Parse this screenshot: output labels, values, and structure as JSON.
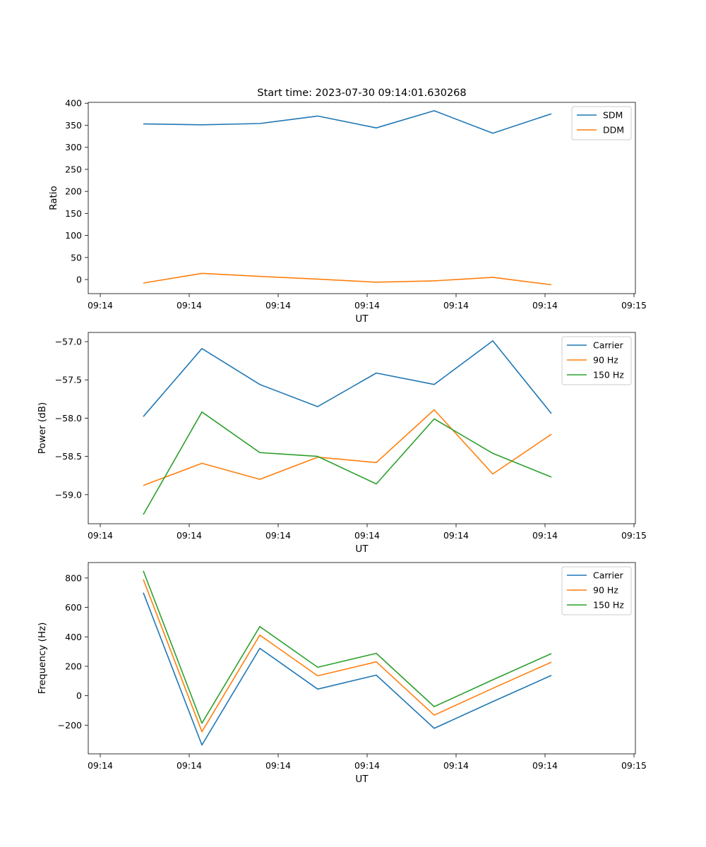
{
  "figure_title": "Start time: 2023-07-30 09:14:01.630268",
  "colors": {
    "blue": "#1f77b4",
    "orange": "#ff7f0e",
    "green": "#2ca02c"
  },
  "chart_data": [
    {
      "type": "line",
      "title": "Start time: 2023-07-30 09:14:01.630268",
      "xlabel": "UT",
      "ylabel": "Ratio",
      "xticks": [
        "09:14",
        "09:14",
        "09:14",
        "09:14",
        "09:14",
        "09:14",
        "09:15"
      ],
      "yticks": [
        0,
        50,
        100,
        150,
        200,
        250,
        300,
        350,
        400
      ],
      "ylim": [
        -32,
        402
      ],
      "legend": "top-right",
      "series": [
        {
          "name": "SDM",
          "color": "#1f77b4",
          "values": [
            353,
            351,
            354,
            371,
            344,
            383,
            332,
            376
          ]
        },
        {
          "name": "DDM",
          "color": "#ff7f0e",
          "values": [
            -8,
            14,
            7,
            1,
            -6,
            -3,
            5,
            -12
          ]
        }
      ]
    },
    {
      "type": "line",
      "xlabel": "UT",
      "ylabel": "Power (dB)",
      "xticks": [
        "09:14",
        "09:14",
        "09:14",
        "09:14",
        "09:14",
        "09:14",
        "09:15"
      ],
      "yticks": [
        -59.0,
        -58.5,
        -58.0,
        -57.5,
        -57.0
      ],
      "ylim": [
        -59.38,
        -56.88
      ],
      "legend": "top-right",
      "series": [
        {
          "name": "Carrier",
          "color": "#1f77b4",
          "values": [
            -57.98,
            -57.09,
            -57.56,
            -57.85,
            -57.41,
            -57.56,
            -56.99,
            -57.94
          ]
        },
        {
          "name": "90 Hz",
          "color": "#ff7f0e",
          "values": [
            -58.88,
            -58.59,
            -58.8,
            -58.51,
            -58.58,
            -57.89,
            -58.73,
            -58.21
          ]
        },
        {
          "name": "150 Hz",
          "color": "#2ca02c",
          "values": [
            -59.26,
            -57.92,
            -58.45,
            -58.5,
            -58.86,
            -58.01,
            -58.46,
            -58.77
          ]
        }
      ]
    },
    {
      "type": "line",
      "xlabel": "UT",
      "ylabel": "Frequency (Hz)",
      "xticks": [
        "09:14",
        "09:14",
        "09:14",
        "09:14",
        "09:14",
        "09:14",
        "09:15"
      ],
      "yticks": [
        -200,
        0,
        200,
        400,
        600,
        800
      ],
      "ylim": [
        -395,
        905
      ],
      "legend": "top-right",
      "series": [
        {
          "name": "Carrier",
          "color": "#1f77b4",
          "values": [
            700,
            -335,
            322,
            45,
            140,
            -222,
            -40,
            138
          ]
        },
        {
          "name": "90 Hz",
          "color": "#ff7f0e",
          "values": [
            790,
            -245,
            412,
            135,
            230,
            -132,
            50,
            228
          ]
        },
        {
          "name": "150 Hz",
          "color": "#2ca02c",
          "values": [
            848,
            -187,
            470,
            193,
            288,
            -74,
            108,
            286
          ]
        }
      ]
    }
  ]
}
